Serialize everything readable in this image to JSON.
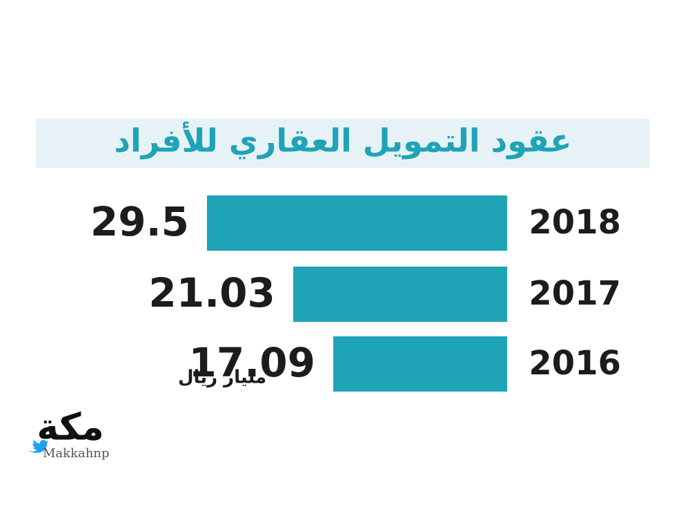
{
  "chart_data": {
    "type": "bar",
    "orientation": "horizontal",
    "title": "عقود التمويل العقاري للأفراد",
    "categories": [
      "2018",
      "2017",
      "2016"
    ],
    "values": [
      29.5,
      21.03,
      17.09
    ],
    "color": "#1fa3b7",
    "unit_label": "مليار ريال",
    "source": {
      "logo": "مكة",
      "handle": "Makkahnp"
    }
  }
}
